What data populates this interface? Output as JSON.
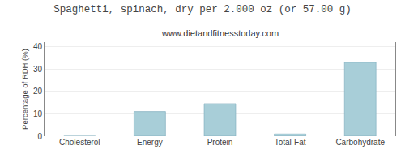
{
  "chart_data": {
    "type": "bar",
    "title": "Spaghetti, spinach, dry per 2.000 oz (or 57.00 g)",
    "subtitle": "www.dietandfitnesstoday.com",
    "categories": [
      "Cholesterol",
      "Energy",
      "Protein",
      "Total-Fat",
      "Carbohydrate"
    ],
    "values": [
      0,
      11,
      14.5,
      1,
      33
    ],
    "color": "#a8ced8",
    "ylabel": "Percentage of RDH (%)",
    "ylim": [
      0,
      42
    ],
    "yticks": [
      0,
      10,
      20,
      30,
      40
    ],
    "grid": true
  }
}
